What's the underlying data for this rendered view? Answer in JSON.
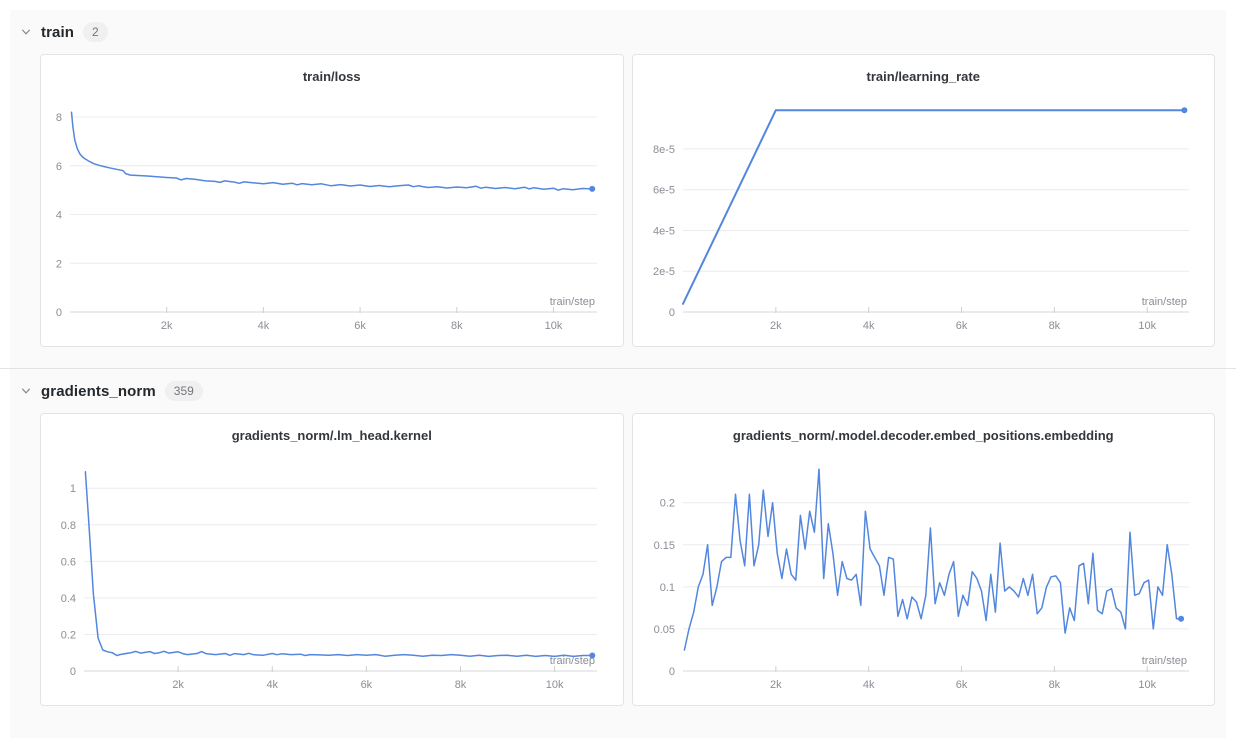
{
  "accent_color": "#5387dd",
  "sections": [
    {
      "label": "train",
      "count": "2",
      "chart_indexes": [
        0,
        1
      ]
    },
    {
      "label": "gradients_norm",
      "count": "359",
      "chart_indexes": [
        2,
        3
      ]
    }
  ],
  "chart_data": [
    {
      "type": "line",
      "title": "train/loss",
      "xlabel": "train/step",
      "ylabel": "",
      "legend": "none",
      "grid": "horizontal",
      "end_dot": true,
      "xlim": [
        0,
        10900
      ],
      "ylim": [
        0,
        8.7
      ],
      "xticks": [
        2000,
        4000,
        6000,
        8000,
        10000
      ],
      "xtick_labels": [
        "2k",
        "4k",
        "6k",
        "8k",
        "10k"
      ],
      "yticks": [
        0,
        2,
        4,
        6,
        8
      ],
      "ytick_labels": [
        "0",
        "2",
        "4",
        "6",
        "8"
      ],
      "x": [
        30,
        60,
        100,
        150,
        200,
        250,
        300,
        400,
        500,
        600,
        700,
        800,
        900,
        1000,
        1100,
        1150,
        1250,
        1400,
        1600,
        1800,
        2000,
        2200,
        2300,
        2400,
        2600,
        2800,
        3000,
        3100,
        3200,
        3400,
        3500,
        3600,
        3800,
        4000,
        4200,
        4400,
        4600,
        4700,
        4800,
        5000,
        5200,
        5400,
        5600,
        5800,
        6000,
        6200,
        6400,
        6600,
        6800,
        7000,
        7100,
        7200,
        7400,
        7600,
        7800,
        8000,
        8200,
        8400,
        8500,
        8600,
        8800,
        9000,
        9200,
        9400,
        9500,
        9600,
        9800,
        10000,
        10100,
        10200,
        10400,
        10600,
        10800
      ],
      "y": [
        8.2,
        7.6,
        7.05,
        6.7,
        6.5,
        6.38,
        6.3,
        6.18,
        6.08,
        6.02,
        5.97,
        5.92,
        5.88,
        5.84,
        5.8,
        5.68,
        5.62,
        5.6,
        5.58,
        5.55,
        5.52,
        5.5,
        5.42,
        5.48,
        5.44,
        5.38,
        5.36,
        5.32,
        5.38,
        5.33,
        5.28,
        5.34,
        5.3,
        5.26,
        5.31,
        5.24,
        5.28,
        5.22,
        5.27,
        5.22,
        5.26,
        5.18,
        5.23,
        5.17,
        5.21,
        5.15,
        5.19,
        5.14,
        5.18,
        5.21,
        5.14,
        5.18,
        5.11,
        5.14,
        5.09,
        5.13,
        5.1,
        5.16,
        5.08,
        5.12,
        5.07,
        5.11,
        5.06,
        5.12,
        5.05,
        5.1,
        5.04,
        5.08,
        5.0,
        5.06,
        5.02,
        5.07,
        5.05
      ]
    },
    {
      "type": "line",
      "title": "train/learning_rate",
      "xlabel": "train/step",
      "ylabel": "",
      "legend": "none",
      "grid": "horizontal",
      "end_dot": true,
      "xlim": [
        0,
        10900
      ],
      "ylim": [
        0,
        0.000104
      ],
      "xticks": [
        2000,
        4000,
        6000,
        8000,
        10000
      ],
      "xtick_labels": [
        "2k",
        "4k",
        "6k",
        "8k",
        "10k"
      ],
      "yticks": [
        0,
        2e-05,
        4e-05,
        6e-05,
        8e-05
      ],
      "ytick_labels": [
        "0",
        "2e-5",
        "4e-5",
        "6e-5",
        "8e-5"
      ],
      "x": [
        0,
        2000,
        10800
      ],
      "y": [
        4e-06,
        9.9e-05,
        9.9e-05
      ]
    },
    {
      "type": "line",
      "title": "gradients_norm/.lm_head.kernel",
      "xlabel": "train/step",
      "ylabel": "",
      "legend": "none",
      "grid": "horizontal",
      "end_dot": true,
      "xlim": [
        0,
        10900
      ],
      "ylim": [
        0,
        1.16
      ],
      "xticks": [
        2000,
        4000,
        6000,
        8000,
        10000
      ],
      "xtick_labels": [
        "2k",
        "4k",
        "6k",
        "8k",
        "10k"
      ],
      "yticks": [
        0,
        0.2,
        0.4,
        0.6,
        0.8,
        1
      ],
      "ytick_labels": [
        "0",
        "0.2",
        "0.4",
        "0.6",
        "0.8",
        "1"
      ],
      "x": [
        30,
        100,
        200,
        300,
        400,
        500,
        600,
        700,
        800,
        1000,
        1100,
        1200,
        1400,
        1500,
        1600,
        1700,
        1800,
        2000,
        2100,
        2200,
        2400,
        2500,
        2600,
        2800,
        3000,
        3100,
        3200,
        3400,
        3500,
        3600,
        3800,
        4000,
        4100,
        4200,
        4400,
        4600,
        4700,
        4800,
        5000,
        5200,
        5400,
        5600,
        5800,
        6000,
        6200,
        6400,
        6600,
        6800,
        7000,
        7200,
        7400,
        7600,
        7800,
        8000,
        8200,
        8400,
        8600,
        8800,
        9000,
        9200,
        9400,
        9600,
        9800,
        10000,
        10200,
        10400,
        10600,
        10800
      ],
      "y": [
        1.09,
        0.82,
        0.42,
        0.18,
        0.115,
        0.105,
        0.1,
        0.085,
        0.092,
        0.1,
        0.107,
        0.098,
        0.106,
        0.096,
        0.1,
        0.108,
        0.098,
        0.105,
        0.095,
        0.09,
        0.096,
        0.106,
        0.094,
        0.09,
        0.096,
        0.086,
        0.095,
        0.09,
        0.097,
        0.089,
        0.086,
        0.096,
        0.089,
        0.094,
        0.09,
        0.092,
        0.085,
        0.09,
        0.088,
        0.086,
        0.09,
        0.085,
        0.09,
        0.086,
        0.09,
        0.081,
        0.086,
        0.09,
        0.086,
        0.081,
        0.086,
        0.085,
        0.09,
        0.086,
        0.081,
        0.086,
        0.08,
        0.085,
        0.086,
        0.081,
        0.086,
        0.08,
        0.085,
        0.08,
        0.086,
        0.08,
        0.085,
        0.085
      ]
    },
    {
      "type": "line",
      "title": "gradients_norm/.model.decoder.embed_positions.embedding",
      "xlabel": "train/step",
      "ylabel": "",
      "legend": "none",
      "grid": "horizontal",
      "end_dot": true,
      "xlim": [
        0,
        10900
      ],
      "ylim": [
        0,
        0.252
      ],
      "xticks": [
        2000,
        4000,
        6000,
        8000,
        10000
      ],
      "xtick_labels": [
        "2k",
        "4k",
        "6k",
        "8k",
        "10k"
      ],
      "yticks": [
        0,
        0.05,
        0.1,
        0.15,
        0.2
      ],
      "ytick_labels": [
        "0",
        "0.05",
        "0.1",
        "0.15",
        "0.2"
      ],
      "x": [
        30,
        130,
        230,
        330,
        430,
        530,
        630,
        730,
        830,
        930,
        1030,
        1130,
        1230,
        1330,
        1430,
        1530,
        1630,
        1730,
        1830,
        1930,
        2030,
        2130,
        2230,
        2330,
        2430,
        2530,
        2630,
        2730,
        2830,
        2930,
        3030,
        3130,
        3230,
        3330,
        3430,
        3530,
        3630,
        3730,
        3830,
        3930,
        4030,
        4130,
        4230,
        4330,
        4430,
        4530,
        4630,
        4730,
        4830,
        4930,
        5030,
        5130,
        5230,
        5330,
        5430,
        5530,
        5630,
        5730,
        5830,
        5930,
        6030,
        6130,
        6230,
        6330,
        6430,
        6530,
        6630,
        6730,
        6830,
        6930,
        7030,
        7130,
        7230,
        7330,
        7430,
        7530,
        7630,
        7730,
        7830,
        7930,
        8030,
        8130,
        8230,
        8330,
        8430,
        8530,
        8630,
        8730,
        8830,
        8930,
        9030,
        9130,
        9230,
        9330,
        9430,
        9530,
        9630,
        9730,
        9830,
        9930,
        10030,
        10130,
        10230,
        10330,
        10430,
        10530,
        10630,
        10730
      ],
      "y": [
        0.025,
        0.05,
        0.07,
        0.1,
        0.115,
        0.15,
        0.078,
        0.1,
        0.13,
        0.135,
        0.135,
        0.21,
        0.155,
        0.125,
        0.21,
        0.125,
        0.15,
        0.215,
        0.16,
        0.2,
        0.14,
        0.11,
        0.145,
        0.115,
        0.108,
        0.185,
        0.145,
        0.19,
        0.165,
        0.24,
        0.11,
        0.175,
        0.14,
        0.09,
        0.13,
        0.11,
        0.108,
        0.115,
        0.078,
        0.19,
        0.145,
        0.135,
        0.125,
        0.09,
        0.135,
        0.133,
        0.065,
        0.085,
        0.062,
        0.088,
        0.082,
        0.062,
        0.09,
        0.17,
        0.08,
        0.105,
        0.09,
        0.115,
        0.13,
        0.065,
        0.09,
        0.078,
        0.118,
        0.11,
        0.095,
        0.06,
        0.115,
        0.07,
        0.152,
        0.095,
        0.1,
        0.095,
        0.088,
        0.11,
        0.09,
        0.115,
        0.068,
        0.075,
        0.1,
        0.112,
        0.113,
        0.105,
        0.045,
        0.075,
        0.06,
        0.125,
        0.128,
        0.08,
        0.14,
        0.072,
        0.068,
        0.095,
        0.098,
        0.075,
        0.07,
        0.05,
        0.165,
        0.09,
        0.092,
        0.105,
        0.108,
        0.05,
        0.1,
        0.09,
        0.15,
        0.115,
        0.062,
        0.062
      ]
    }
  ]
}
